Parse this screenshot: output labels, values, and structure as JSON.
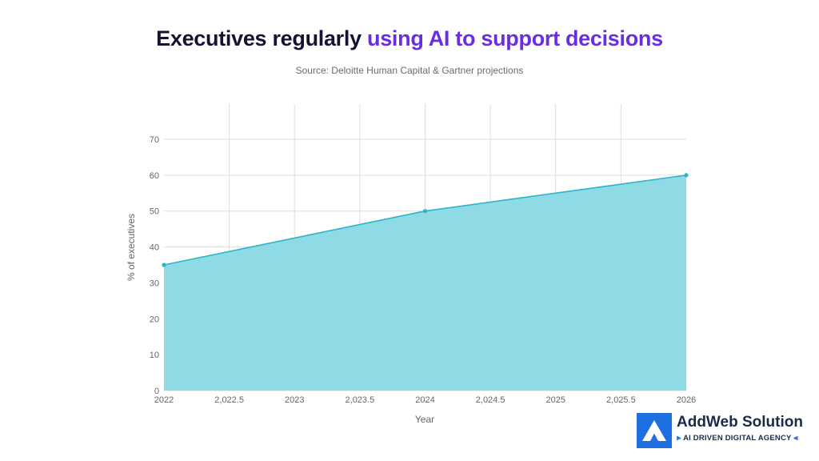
{
  "header": {
    "title_part1": "Executives regularly",
    "title_part2": "using AI to support decisions",
    "subtitle": "Source: Deloitte Human Capital & Gartner projections"
  },
  "colors": {
    "title_dark": "#141432",
    "title_accent": "#6a2ee0",
    "area_fill": "#8fdbe5",
    "line": "#29b6c8",
    "grid": "#dddddd",
    "logo_blue": "#1e6fe0"
  },
  "chart_data": {
    "type": "area",
    "title": "Executives regularly using AI to support decisions",
    "subtitle": "Source: Deloitte Human Capital & Gartner projections",
    "xlabel": "Year",
    "ylabel": "% of executives",
    "xlim": [
      2022,
      2026
    ],
    "ylim": [
      0,
      70
    ],
    "x_ticks": [
      "2022",
      "2,022.5",
      "2023",
      "2,023.5",
      "2024",
      "2,024.5",
      "2025",
      "2,025.5",
      "2026"
    ],
    "y_ticks": [
      "0",
      "10",
      "20",
      "30",
      "40",
      "50",
      "60",
      "70"
    ],
    "grid": true,
    "legend": "none",
    "series": [
      {
        "x": [
          2022,
          2024,
          2026
        ],
        "y": [
          35,
          50,
          60
        ]
      }
    ]
  },
  "logo": {
    "name": "AddWeb Solution",
    "tagline": "AI DRIVEN DIGITAL AGENCY",
    "tag_left": "⫸",
    "tag_right": "⫷"
  }
}
